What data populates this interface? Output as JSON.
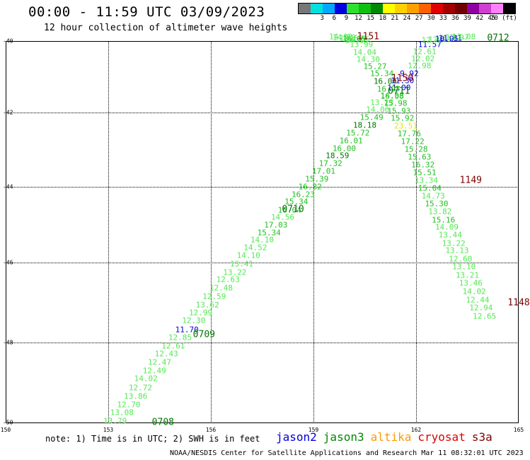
{
  "header": {
    "title": "00:00 - 11:59 UTC 03/09/2023",
    "subtitle": "12 hour collection of altimeter wave heights"
  },
  "scale": {
    "colors": [
      "#777777",
      "#00e0e0",
      "#00a8ff",
      "#0000e0",
      "#30e030",
      "#10c010",
      "#008800",
      "#ffff00",
      "#ffd000",
      "#ffa000",
      "#ff6000",
      "#e00000",
      "#a00000",
      "#700000",
      "#9000a0",
      "#d040d0",
      "#ff80ff",
      "#000000"
    ],
    "ticks": [
      "3",
      "6",
      "9",
      "12",
      "15",
      "18",
      "21",
      "24",
      "27",
      "30",
      "33",
      "36",
      "39",
      "42",
      "45",
      "70 (ft)"
    ]
  },
  "map": {
    "x_labels": [
      "150",
      "153",
      "156",
      "159",
      "162",
      "165"
    ],
    "y_labels": [
      "-40",
      "-42",
      "-44",
      "-46",
      "-48",
      "-50"
    ]
  },
  "level_colors": {
    "lg": "#54e854",
    "g": "#20c020",
    "dg": "#007400",
    "b": "#0000dd",
    "y": "#e8e800",
    "t": "#800000"
  },
  "observations": [
    {
      "v": "13.79",
      "lon": 153.2,
      "lat": -49.96,
      "c": "lg"
    },
    {
      "v": "13.08",
      "lon": 153.4,
      "lat": -49.76,
      "c": "lg"
    },
    {
      "v": "12.70",
      "lon": 153.6,
      "lat": -49.55,
      "c": "lg"
    },
    {
      "v": "13.86",
      "lon": 153.8,
      "lat": -49.35,
      "c": "lg"
    },
    {
      "v": "12.72",
      "lon": 153.94,
      "lat": -49.13,
      "c": "lg"
    },
    {
      "v": "14.02",
      "lon": 154.1,
      "lat": -48.91,
      "c": "lg"
    },
    {
      "v": "12.49",
      "lon": 154.35,
      "lat": -48.71,
      "c": "lg"
    },
    {
      "v": "12.47",
      "lon": 154.5,
      "lat": -48.49,
      "c": "lg"
    },
    {
      "v": "12.43",
      "lon": 154.7,
      "lat": -48.29,
      "c": "lg"
    },
    {
      "v": "12.61",
      "lon": 154.9,
      "lat": -48.09,
      "c": "lg"
    },
    {
      "v": "12.85",
      "lon": 155.1,
      "lat": -47.87,
      "c": "lg"
    },
    {
      "v": "11.70",
      "lon": 155.3,
      "lat": -47.68,
      "c": "b"
    },
    {
      "v": "12.30",
      "lon": 155.5,
      "lat": -47.46,
      "c": "lg"
    },
    {
      "v": "12.99",
      "lon": 155.7,
      "lat": -47.26,
      "c": "lg"
    },
    {
      "v": "13.62",
      "lon": 155.9,
      "lat": -47.06,
      "c": "lg"
    },
    {
      "v": "12.59",
      "lon": 156.1,
      "lat": -46.85,
      "c": "lg"
    },
    {
      "v": "12.48",
      "lon": 156.3,
      "lat": -46.64,
      "c": "lg"
    },
    {
      "v": "12.63",
      "lon": 156.5,
      "lat": -46.43,
      "c": "lg"
    },
    {
      "v": "13.22",
      "lon": 156.7,
      "lat": -46.24,
      "c": "lg"
    },
    {
      "v": "13.41",
      "lon": 156.9,
      "lat": -46.04,
      "c": "lg"
    },
    {
      "v": "14.10",
      "lon": 157.1,
      "lat": -45.81,
      "c": "lg"
    },
    {
      "v": "14.52",
      "lon": 157.3,
      "lat": -45.61,
      "c": "lg"
    },
    {
      "v": "14.10",
      "lon": 157.5,
      "lat": -45.41,
      "c": "lg"
    },
    {
      "v": "15.34",
      "lon": 157.7,
      "lat": -45.21,
      "c": "g"
    },
    {
      "v": "17.03",
      "lon": 157.9,
      "lat": -45.0,
      "c": "g"
    },
    {
      "v": "14.56",
      "lon": 158.1,
      "lat": -44.8,
      "c": "lg"
    },
    {
      "v": "16.04",
      "lon": 158.3,
      "lat": -44.61,
      "c": "g"
    },
    {
      "v": "15.34",
      "lon": 158.5,
      "lat": -44.4,
      "c": "g"
    },
    {
      "v": "16.23",
      "lon": 158.7,
      "lat": -44.2,
      "c": "g"
    },
    {
      "v": "16.82",
      "lon": 158.9,
      "lat": -44.0,
      "c": "g"
    },
    {
      "v": "15.39",
      "lon": 159.1,
      "lat": -43.79,
      "c": "g"
    },
    {
      "v": "17.01",
      "lon": 159.3,
      "lat": -43.59,
      "c": "g"
    },
    {
      "v": "17.32",
      "lon": 159.5,
      "lat": -43.38,
      "c": "g"
    },
    {
      "v": "18.59",
      "lon": 159.7,
      "lat": -43.17,
      "c": "dg"
    },
    {
      "v": "16.00",
      "lon": 159.9,
      "lat": -42.97,
      "c": "g"
    },
    {
      "v": "16.01",
      "lon": 160.1,
      "lat": -42.76,
      "c": "g"
    },
    {
      "v": "15.72",
      "lon": 160.3,
      "lat": -42.55,
      "c": "g"
    },
    {
      "v": "18.18",
      "lon": 160.5,
      "lat": -42.35,
      "c": "dg"
    },
    {
      "v": "15.49",
      "lon": 160.7,
      "lat": -42.14,
      "c": "g"
    },
    {
      "v": "14.06",
      "lon": 160.88,
      "lat": -41.93,
      "c": "lg"
    },
    {
      "v": "13.23",
      "lon": 161.0,
      "lat": -41.72,
      "c": "lg"
    },
    {
      "v": "14.58",
      "lon": 161.3,
      "lat": -41.52,
      "c": "lg"
    },
    {
      "v": "11.00",
      "lon": 161.5,
      "lat": -41.3,
      "c": "b"
    },
    {
      "v": "11.30",
      "lon": 161.6,
      "lat": -41.11,
      "c": "b"
    },
    {
      "v": "9.92",
      "lon": 161.8,
      "lat": -40.91,
      "c": "b"
    },
    {
      "v": "12.98",
      "lon": 162.1,
      "lat": -40.7,
      "c": "lg"
    },
    {
      "v": "12.02",
      "lon": 162.2,
      "lat": -40.49,
      "c": "lg"
    },
    {
      "v": "12.61",
      "lon": 162.25,
      "lat": -40.29,
      "c": "lg"
    },
    {
      "v": "11.57",
      "lon": 162.4,
      "lat": -40.09,
      "c": "b"
    },
    {
      "v": "12.47",
      "lon": 162.5,
      "lat": -39.87,
      "c": "lg"
    },
    {
      "v": "12.09",
      "lon": 162.7,
      "lat": -39.67,
      "c": "lg"
    },
    {
      "v": "10.95",
      "lon": 162.9,
      "lat": -39.48,
      "c": "b"
    },
    {
      "v": "11.81",
      "lon": 163.0,
      "lat": -39.26,
      "c": "b"
    },
    {
      "v": "12.97",
      "lon": 163.2,
      "lat": -39.06,
      "c": "lg"
    },
    {
      "v": "12.08",
      "lon": 163.4,
      "lat": -38.85,
      "c": "lg"
    },
    {
      "v": "14.02",
      "lon": 159.8,
      "lat": -38.85,
      "c": "lg"
    },
    {
      "v": "14.10",
      "lon": 159.9,
      "lat": -39.06,
      "c": "lg"
    },
    {
      "v": "13.60",
      "lon": 160.1,
      "lat": -39.27,
      "c": "lg"
    },
    {
      "v": "16.05",
      "lon": 160.2,
      "lat": -39.48,
      "c": "g"
    },
    {
      "v": "14.65",
      "lon": 160.3,
      "lat": -39.69,
      "c": "lg"
    },
    {
      "v": "14.18",
      "lon": 160.25,
      "lat": -39.89,
      "c": "lg"
    },
    {
      "v": "13.99",
      "lon": 160.4,
      "lat": -40.1,
      "c": "lg"
    },
    {
      "v": "14.04",
      "lon": 160.5,
      "lat": -40.31,
      "c": "lg"
    },
    {
      "v": "14.30",
      "lon": 160.6,
      "lat": -40.51,
      "c": "lg"
    },
    {
      "v": "15.27",
      "lon": 160.8,
      "lat": -40.72,
      "c": "g"
    },
    {
      "v": "15.34",
      "lon": 161.0,
      "lat": -40.92,
      "c": "g"
    },
    {
      "v": "16.04",
      "lon": 161.1,
      "lat": -41.13,
      "c": "dg"
    },
    {
      "v": "16.97",
      "lon": 161.2,
      "lat": -41.34,
      "c": "g"
    },
    {
      "v": "16.08",
      "lon": 161.3,
      "lat": -41.54,
      "c": "g"
    },
    {
      "v": "15.98",
      "lon": 161.4,
      "lat": -41.75,
      "c": "g"
    },
    {
      "v": "15.93",
      "lon": 161.5,
      "lat": -41.96,
      "c": "g"
    },
    {
      "v": "15.92",
      "lon": 161.6,
      "lat": -42.16,
      "c": "g"
    },
    {
      "v": "23.51",
      "lon": 161.7,
      "lat": -42.36,
      "c": "y"
    },
    {
      "v": "17.76",
      "lon": 161.8,
      "lat": -42.58,
      "c": "g"
    },
    {
      "v": "17.22",
      "lon": 161.9,
      "lat": -42.78,
      "c": "g"
    },
    {
      "v": "15.28",
      "lon": 162.0,
      "lat": -42.99,
      "c": "g"
    },
    {
      "v": "15.63",
      "lon": 162.1,
      "lat": -43.2,
      "c": "g"
    },
    {
      "v": "16.32",
      "lon": 162.2,
      "lat": -43.41,
      "c": "g"
    },
    {
      "v": "15.51",
      "lon": 162.25,
      "lat": -43.61,
      "c": "g"
    },
    {
      "v": "13.34",
      "lon": 162.3,
      "lat": -43.82,
      "c": "lg"
    },
    {
      "v": "15.04",
      "lon": 162.4,
      "lat": -44.03,
      "c": "g"
    },
    {
      "v": "14.73",
      "lon": 162.5,
      "lat": -44.24,
      "c": "lg"
    },
    {
      "v": "15.30",
      "lon": 162.6,
      "lat": -44.45,
      "c": "g"
    },
    {
      "v": "13.82",
      "lon": 162.7,
      "lat": -44.66,
      "c": "lg"
    },
    {
      "v": "15.16",
      "lon": 162.8,
      "lat": -44.87,
      "c": "g"
    },
    {
      "v": "14.09",
      "lon": 162.9,
      "lat": -45.07,
      "c": "lg"
    },
    {
      "v": "13.44",
      "lon": 163.0,
      "lat": -45.28,
      "c": "lg"
    },
    {
      "v": "13.22",
      "lon": 163.1,
      "lat": -45.49,
      "c": "lg"
    },
    {
      "v": "13.13",
      "lon": 163.2,
      "lat": -45.69,
      "c": "lg"
    },
    {
      "v": "12.60",
      "lon": 163.3,
      "lat": -45.9,
      "c": "lg"
    },
    {
      "v": "13.10",
      "lon": 163.4,
      "lat": -46.11,
      "c": "lg"
    },
    {
      "v": "13.21",
      "lon": 163.5,
      "lat": -46.31,
      "c": "lg"
    },
    {
      "v": "13.46",
      "lon": 163.6,
      "lat": -46.52,
      "c": "lg"
    },
    {
      "v": "14.02",
      "lon": 163.7,
      "lat": -46.73,
      "c": "lg"
    },
    {
      "v": "12.44",
      "lon": 163.8,
      "lat": -46.93,
      "c": "lg"
    },
    {
      "v": "12.94",
      "lon": 163.9,
      "lat": -47.14,
      "c": "lg"
    },
    {
      "v": "12.65",
      "lon": 164.0,
      "lat": -47.35,
      "c": "lg"
    }
  ],
  "track_labels": [
    {
      "v": "1151",
      "lon": 160.6,
      "lat": -38.87,
      "c": "t"
    },
    {
      "v": "0712",
      "lon": 164.4,
      "lat": -39.2,
      "c": "dg"
    },
    {
      "v": "1150",
      "lon": 161.6,
      "lat": -41.05,
      "c": "t"
    },
    {
      "v": "0711",
      "lon": 161.5,
      "lat": -41.4,
      "c": "dg"
    },
    {
      "v": "0710",
      "lon": 158.4,
      "lat": -44.6,
      "c": "dg"
    },
    {
      "v": "1149",
      "lon": 163.6,
      "lat": -43.83,
      "c": "t"
    },
    {
      "v": "0709",
      "lon": 155.8,
      "lat": -47.8,
      "c": "dg"
    },
    {
      "v": "1148",
      "lon": 165.0,
      "lat": -47.0,
      "c": "t"
    },
    {
      "v": "0708",
      "lon": 154.6,
      "lat": -50.0,
      "c": "dg"
    }
  ],
  "note": "note: 1) Time is in UTC; 2) SWH is in feet",
  "legend": [
    {
      "name": "jason2",
      "color": "#0000dd"
    },
    {
      "name": "jason3",
      "color": "#008800"
    },
    {
      "name": "altika",
      "color": "#ff9900"
    },
    {
      "name": "cryosat",
      "color": "#dd0000"
    },
    {
      "name": "s3a",
      "color": "#800000"
    }
  ],
  "footer": "NOAA/NESDIS Center for Satellite Applications and Research   Mar 11 08:32:01 UTC 2023"
}
